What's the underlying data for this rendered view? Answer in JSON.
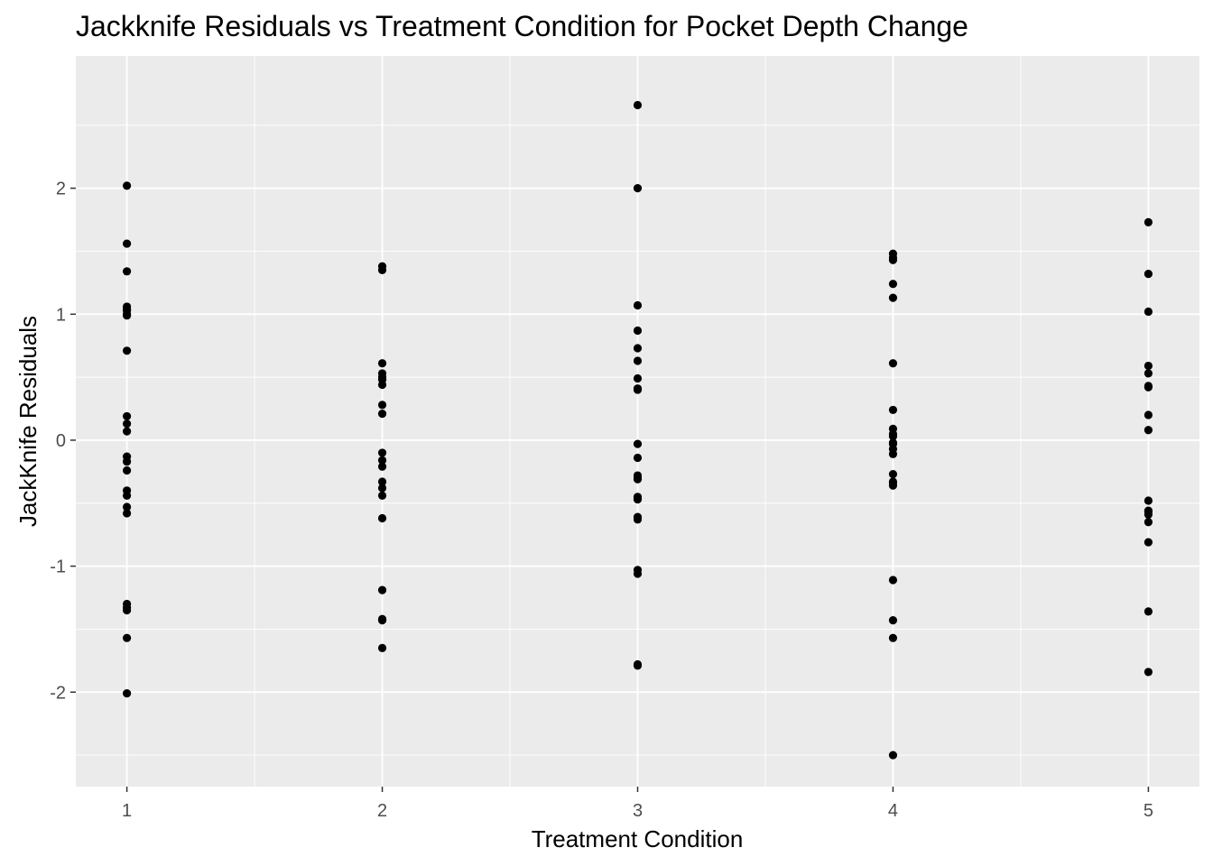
{
  "chart_data": {
    "type": "scatter",
    "title": "Jackknife Residuals vs Treatment Condition for Pocket Depth Change",
    "xlabel": "Treatment Condition",
    "ylabel": "JackKnife Residuals",
    "xlim": [
      0.8,
      5.2
    ],
    "ylim": [
      -2.75,
      3.05
    ],
    "x_ticks": [
      1,
      2,
      3,
      4,
      5
    ],
    "x_tick_labels": [
      "1",
      "2",
      "3",
      "4",
      "5"
    ],
    "y_ticks": [
      -2,
      -1,
      0,
      1,
      2
    ],
    "y_tick_labels": [
      "-2",
      "-1",
      "0",
      "1",
      "2"
    ],
    "grid": true,
    "colors": {
      "panel": "#ebebeb",
      "grid_major": "#ffffff",
      "point": "#000000"
    },
    "series": [
      {
        "x": [
          1,
          1,
          1,
          1,
          1,
          1,
          1,
          1,
          1,
          1,
          1,
          1,
          1,
          1,
          1,
          1,
          1,
          1,
          1,
          1,
          1,
          1,
          1,
          1
        ],
        "y": [
          2.02,
          1.56,
          1.34,
          1.06,
          1.03,
          1.0,
          0.71,
          0.19,
          0.13,
          0.07,
          -0.13,
          -0.17,
          -0.24,
          -0.4,
          -0.44,
          -0.53,
          -0.58,
          -1.3,
          -1.33,
          -1.35,
          -1.57,
          -2.01,
          0.99,
          1.04
        ]
      },
      {
        "x": [
          2,
          2,
          2,
          2,
          2,
          2,
          2,
          2,
          2,
          2,
          2,
          2,
          2,
          2,
          2,
          2,
          2,
          2,
          2,
          2
        ],
        "y": [
          1.38,
          1.35,
          0.61,
          0.53,
          0.48,
          0.44,
          0.28,
          0.21,
          -0.1,
          -0.16,
          -0.21,
          -0.33,
          -0.38,
          -0.44,
          -0.62,
          -1.19,
          -1.42,
          -1.43,
          -1.65,
          0.5
        ]
      },
      {
        "x": [
          3,
          3,
          3,
          3,
          3,
          3,
          3,
          3,
          3,
          3,
          3,
          3,
          3,
          3,
          3,
          3,
          3,
          3,
          3,
          3,
          3,
          3,
          3
        ],
        "y": [
          2.66,
          2.0,
          1.07,
          0.87,
          0.73,
          0.63,
          0.49,
          0.4,
          -0.03,
          -0.14,
          -0.28,
          -0.3,
          -0.45,
          -0.47,
          -0.61,
          -0.63,
          -1.03,
          -1.06,
          -1.78,
          -1.79,
          0.41,
          -0.31,
          -0.46
        ]
      },
      {
        "x": [
          4,
          4,
          4,
          4,
          4,
          4,
          4,
          4,
          4,
          4,
          4,
          4,
          4,
          4,
          4,
          4,
          4,
          4,
          4,
          4,
          4,
          4
        ],
        "y": [
          1.48,
          1.43,
          1.24,
          1.13,
          0.61,
          0.24,
          0.09,
          0.03,
          -0.03,
          -0.07,
          -0.11,
          -0.27,
          -0.33,
          -0.36,
          -1.11,
          -1.43,
          -1.57,
          -2.5,
          1.45,
          0.05,
          -0.02,
          -0.34
        ]
      },
      {
        "x": [
          5,
          5,
          5,
          5,
          5,
          5,
          5,
          5,
          5,
          5,
          5,
          5,
          5,
          5,
          5,
          5,
          5
        ],
        "y": [
          1.73,
          1.32,
          1.02,
          0.59,
          0.53,
          0.42,
          0.2,
          0.08,
          -0.48,
          -0.56,
          -0.59,
          -0.65,
          -0.81,
          -1.36,
          -1.84,
          0.43,
          -0.57
        ]
      }
    ]
  }
}
